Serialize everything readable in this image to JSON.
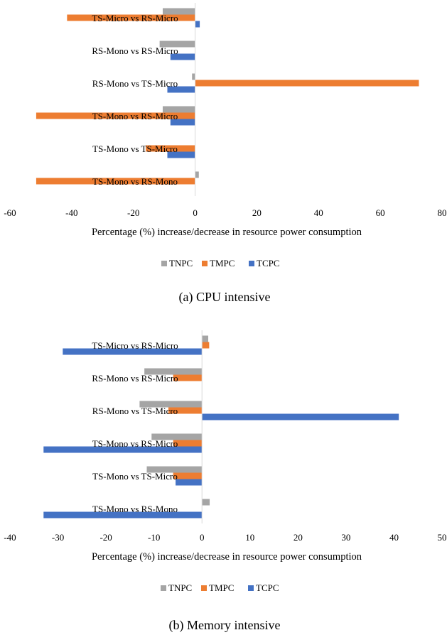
{
  "chart_data": [
    {
      "type": "bar",
      "orientation": "horizontal",
      "caption": "(a) CPU intensive",
      "xlabel": "Percentage (%) increase/decrease  in resource power consumption",
      "xlim": [
        -60,
        80
      ],
      "xticks": [
        "-60",
        "-40",
        "-20",
        "0",
        "20",
        "40",
        "60",
        "80"
      ],
      "legend_position": "bottom",
      "categories": [
        "TS-Micro vs RS-Micro",
        "RS-Mono vs RS-Micro",
        "RS-Mono vs TS-Micro",
        "TS-Mono vs RS-Micro",
        "TS-Mono vs TS-Micro",
        "TS-Mono vs RS-Mono"
      ],
      "series": [
        {
          "name": "TNPC",
          "color": "#a5a5a5",
          "values": [
            -10.5,
            -11.5,
            -1,
            -10.5,
            0,
            1.2
          ]
        },
        {
          "name": "TMPC",
          "color": "#ed7d31",
          "values": [
            -41.5,
            0,
            72.5,
            -51.5,
            -16,
            -51.5
          ]
        },
        {
          "name": "TCPC",
          "color": "#4472c4",
          "values": [
            1.5,
            -8,
            -9,
            -8,
            -9,
            0
          ]
        }
      ]
    },
    {
      "type": "bar",
      "orientation": "horizontal",
      "caption": "(b) Memory intensive",
      "xlabel": "Percentage (%) increase/decrease  in resource power consumption",
      "xlim": [
        -40,
        50
      ],
      "xticks": [
        "-40",
        "-30",
        "-20",
        "-10",
        "0",
        "10",
        "20",
        "30",
        "40",
        "50"
      ],
      "legend_position": "bottom",
      "categories": [
        "TS-Micro vs RS-Micro",
        "RS-Mono vs RS-Micro",
        "RS-Mono vs TS-Micro",
        "TS-Mono vs RS-Micro",
        "TS-Mono vs TS-Micro",
        "TS-Mono vs RS-Mono"
      ],
      "series": [
        {
          "name": "TNPC",
          "color": "#a5a5a5",
          "values": [
            1.3,
            -12,
            -13,
            -10.5,
            -11.5,
            1.6
          ]
        },
        {
          "name": "TMPC",
          "color": "#ed7d31",
          "values": [
            1.5,
            -6,
            -7,
            -6,
            -6,
            0
          ]
        },
        {
          "name": "TCPC",
          "color": "#4472c4",
          "values": [
            -29,
            0,
            41,
            -33,
            -5.5,
            -33
          ]
        }
      ]
    }
  ]
}
